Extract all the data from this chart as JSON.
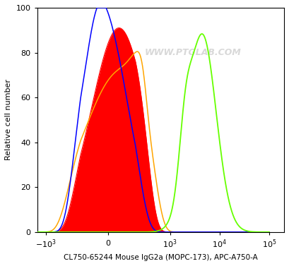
{
  "title": "",
  "xlabel": "CL750-65244 Mouse IgG2a (MOPC-173), APC-A750-A",
  "ylabel": "Relative cell number",
  "watermark": "WWW.PTGLAB.COM",
  "xlim_min": -1500,
  "xlim_max": 200000,
  "ylim_min": 0,
  "ylim_max": 100,
  "yticks": [
    0,
    20,
    40,
    60,
    80,
    100
  ],
  "background_color": "#ffffff",
  "plot_bg_color": "#ffffff",
  "red_fill_color": "#ff0000",
  "blue_line_color": "#0000ff",
  "orange_line_color": "#ffa500",
  "green_line_color": "#66ff00",
  "linthresh": 200,
  "linscale": 0.5
}
